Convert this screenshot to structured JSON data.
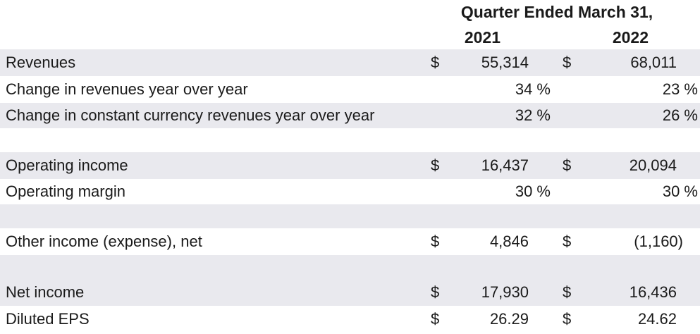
{
  "header": {
    "title": "Quarter Ended March 31,",
    "year1": "2021",
    "year2": "2022"
  },
  "rows": [
    {
      "label": "Revenues",
      "cur1": "$",
      "v1": "55,314",
      "cur2": "$",
      "v2": "68,011"
    },
    {
      "label": "Change in revenues year over year",
      "p1": "34 %",
      "p2": "23 %"
    },
    {
      "label": "Change in constant currency revenues year over year",
      "p1": "32 %",
      "p2": "26 %"
    },
    {
      "label": "Operating income",
      "cur1": "$",
      "v1": "16,437",
      "cur2": "$",
      "v2": "20,094"
    },
    {
      "label": "Operating margin",
      "p1": "30 %",
      "p2": "30 %"
    },
    {
      "label": "Other income (expense), net",
      "cur1": "$",
      "v1": "4,846",
      "cur2": "$",
      "v2": "(1,160)"
    },
    {
      "label": "Net income",
      "cur1": "$",
      "v1": "17,930",
      "cur2": "$",
      "v2": "16,436"
    },
    {
      "label": "Diluted EPS",
      "cur1": "$",
      "v1": "26.29",
      "cur2": "$",
      "v2": "24.62"
    }
  ]
}
